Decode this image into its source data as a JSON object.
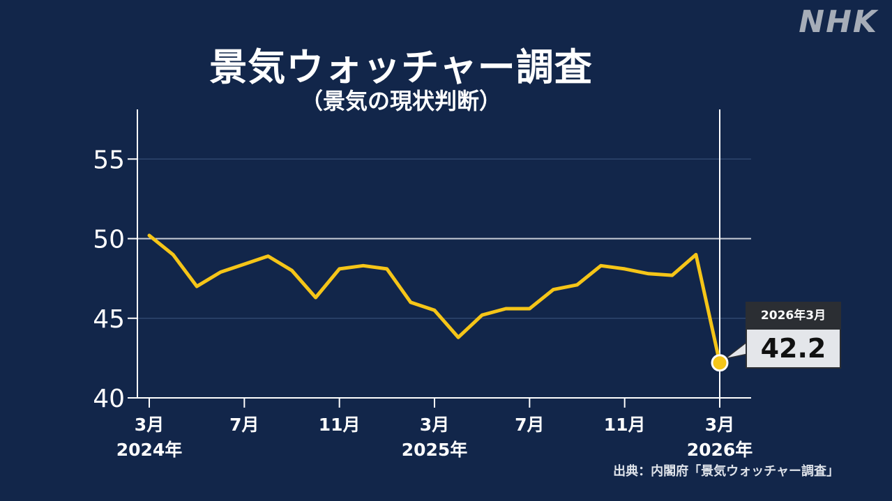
{
  "logo_text": "NHK",
  "source_text": "出典：内閣府「景気ウォッチャー調査」",
  "callout": {
    "period": "2026年3月",
    "value": "42.2"
  },
  "colors": {
    "background": "#12264a",
    "line": "#f5c518",
    "axis": "#ffffff",
    "gridline": "#2e466e",
    "reference_line": "#c9ced8"
  },
  "chart_data": {
    "type": "line",
    "title": "景気ウォッチャー調査",
    "subtitle": "（景気の現状判断）",
    "xlabel": "",
    "ylabel": "",
    "ylim": [
      40,
      58
    ],
    "yticks": [
      40,
      45,
      50,
      55
    ],
    "reference_line": 50,
    "grid": true,
    "x": [
      "2024-03",
      "2024-04",
      "2024-05",
      "2024-06",
      "2024-07",
      "2024-08",
      "2024-09",
      "2024-10",
      "2024-11",
      "2024-12",
      "2025-01",
      "2025-02",
      "2025-03",
      "2025-04",
      "2025-05",
      "2025-06",
      "2025-07",
      "2025-08",
      "2025-09",
      "2025-10",
      "2025-11",
      "2025-12",
      "2026-01",
      "2026-02",
      "2026-03"
    ],
    "x_ticks": [
      {
        "month": "3月",
        "year": "2024年",
        "index": 0
      },
      {
        "month": "7月",
        "year": "",
        "index": 4
      },
      {
        "month": "11月",
        "year": "",
        "index": 8
      },
      {
        "month": "3月",
        "year": "2025年",
        "index": 12
      },
      {
        "month": "7月",
        "year": "",
        "index": 16
      },
      {
        "month": "11月",
        "year": "",
        "index": 20
      },
      {
        "month": "3月",
        "year": "2026年",
        "index": 24
      }
    ],
    "series": [
      {
        "values": [
          50.2,
          49.0,
          47.0,
          47.9,
          48.4,
          48.9,
          48.0,
          46.3,
          48.1,
          48.3,
          48.1,
          46.0,
          45.5,
          43.8,
          45.2,
          45.6,
          45.6,
          46.8,
          47.1,
          48.3,
          48.1,
          47.8,
          47.7,
          49.0,
          42.2
        ]
      }
    ],
    "highlight_index": 24
  }
}
